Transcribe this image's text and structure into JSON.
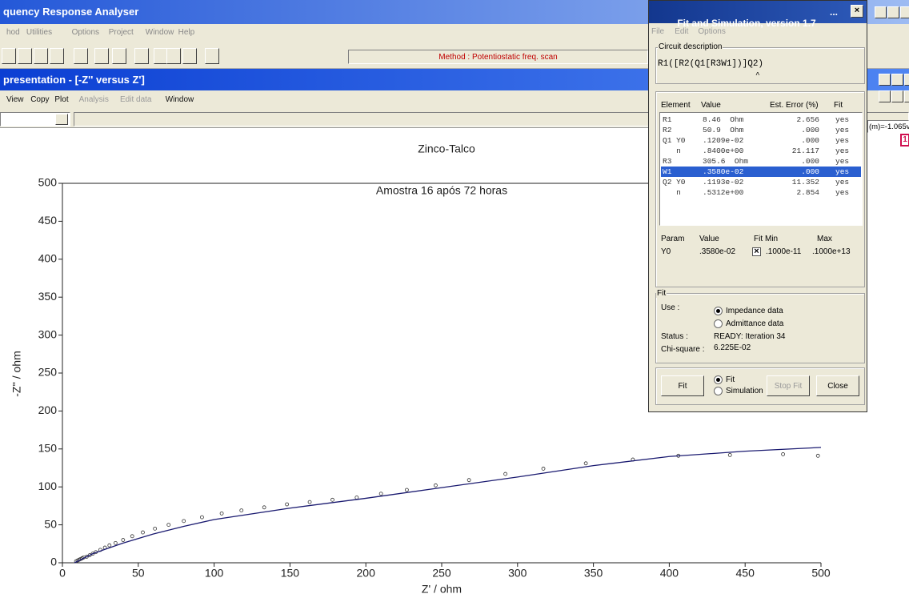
{
  "app": {
    "title": "quency Response Analyser",
    "menu": [
      "hod",
      "Utilities",
      "Options",
      "Project",
      "Window",
      "Help"
    ],
    "status": "Method : Potentiostatic freq. scan"
  },
  "child": {
    "title": "presentation - [-Z'' versus Z']",
    "menu": [
      {
        "label": "View",
        "enabled": true
      },
      {
        "label": "Copy",
        "enabled": true
      },
      {
        "label": "Plot",
        "enabled": true
      },
      {
        "label": "Analysis",
        "enabled": false
      },
      {
        "label": "Edit data",
        "enabled": false
      },
      {
        "label": "Window",
        "enabled": true
      }
    ],
    "side_text": "(m)=-1.065v",
    "badge": "1"
  },
  "chart_data": {
    "type": "scatter",
    "title": "Zinco-Talco",
    "subtitle": "Amostra 16 após 72 horas",
    "x_label": "Z' / ohm",
    "y_label": "-Z'' / ohm",
    "xlim": [
      0,
      500
    ],
    "ylim": [
      0,
      500
    ],
    "xticks": [
      0,
      50,
      100,
      150,
      200,
      250,
      300,
      350,
      400,
      450,
      500
    ],
    "yticks": [
      0,
      50,
      100,
      150,
      200,
      250,
      300,
      350,
      400,
      450,
      500
    ],
    "grid": false,
    "series": [
      {
        "style": "markers",
        "color": "#333333",
        "x": [
          9,
          10,
          11,
          12,
          13,
          14,
          16,
          18,
          20,
          22,
          25,
          28,
          31,
          35,
          40,
          46,
          53,
          61,
          70,
          80,
          92,
          105,
          118,
          133,
          148,
          163,
          178,
          194,
          210,
          227,
          246,
          268,
          292,
          317,
          345,
          376,
          406,
          440,
          475,
          498
        ],
        "y": [
          2,
          3,
          4,
          5,
          6,
          7,
          8,
          10,
          12,
          14,
          17,
          20,
          23,
          26,
          30,
          35,
          40,
          45,
          50,
          55,
          60,
          65,
          69,
          73,
          77,
          80,
          83,
          86,
          91,
          96,
          102,
          109,
          117,
          124,
          131,
          136,
          141,
          142,
          143,
          141
        ]
      },
      {
        "style": "line",
        "color": "#1a1a70",
        "x": [
          8,
          20,
          40,
          60,
          80,
          100,
          150,
          200,
          250,
          300,
          350,
          400,
          450,
          500
        ],
        "y": [
          0,
          12,
          26,
          38,
          48,
          57,
          72,
          85,
          99,
          113,
          128,
          140,
          147,
          152
        ]
      }
    ]
  },
  "fit_window": {
    "title": "Fit and Simulation, version 1.7",
    "title_overflow": "...",
    "menu": [
      "File",
      "Edit",
      "Options"
    ],
    "circuit_label": "Circuit description",
    "circuit": "R1([R2(Q1[R3W1])]Q2)",
    "cursor": "^",
    "headers": [
      "Element",
      "Value",
      "Est. Error (%)",
      "Fit"
    ],
    "rows": [
      [
        "R1",
        "8.46  Ohm",
        "2.656",
        "yes"
      ],
      [
        "R2",
        "50.9  Ohm",
        ".000",
        "yes"
      ],
      [
        "Q1 Y0",
        ".1209e-02",
        ".000",
        "yes"
      ],
      [
        "   n",
        ".8400e+00",
        "21.117",
        "yes"
      ],
      [
        "R3",
        "305.6  Ohm",
        ".000",
        "yes"
      ],
      [
        "W1",
        ".3580e-02",
        ".000",
        "yes"
      ],
      [
        "Q2 Y0",
        ".1193e-02",
        "11.352",
        "yes"
      ],
      [
        "   n",
        ".5312e+00",
        "2.854",
        "yes"
      ]
    ],
    "selected_row": 5,
    "param_headers": [
      "Param",
      "Value",
      "Fit",
      "Min",
      "Max"
    ],
    "param": {
      "name": "Y0",
      "value": ".3580e-02",
      "fit": true,
      "min": ".1000e-11",
      "max": ".1000e+13"
    },
    "fit_group": "Fit",
    "use_label": "Use :",
    "use_options": [
      {
        "label": "Impedance data",
        "selected": true
      },
      {
        "label": "Admittance data",
        "selected": false
      }
    ],
    "status_label": "Status :",
    "status": "READY: Iteration 34",
    "chi_label": "Chi-square :",
    "chi": "6.225E-02",
    "buttons": [
      {
        "label": "Fit",
        "enabled": true
      },
      {
        "label": "Stop Fit",
        "enabled": false
      },
      {
        "label": "Close",
        "enabled": true
      }
    ],
    "mode_options": [
      {
        "label": "Fit",
        "selected": true
      },
      {
        "label": "Simulation",
        "selected": false
      }
    ]
  }
}
